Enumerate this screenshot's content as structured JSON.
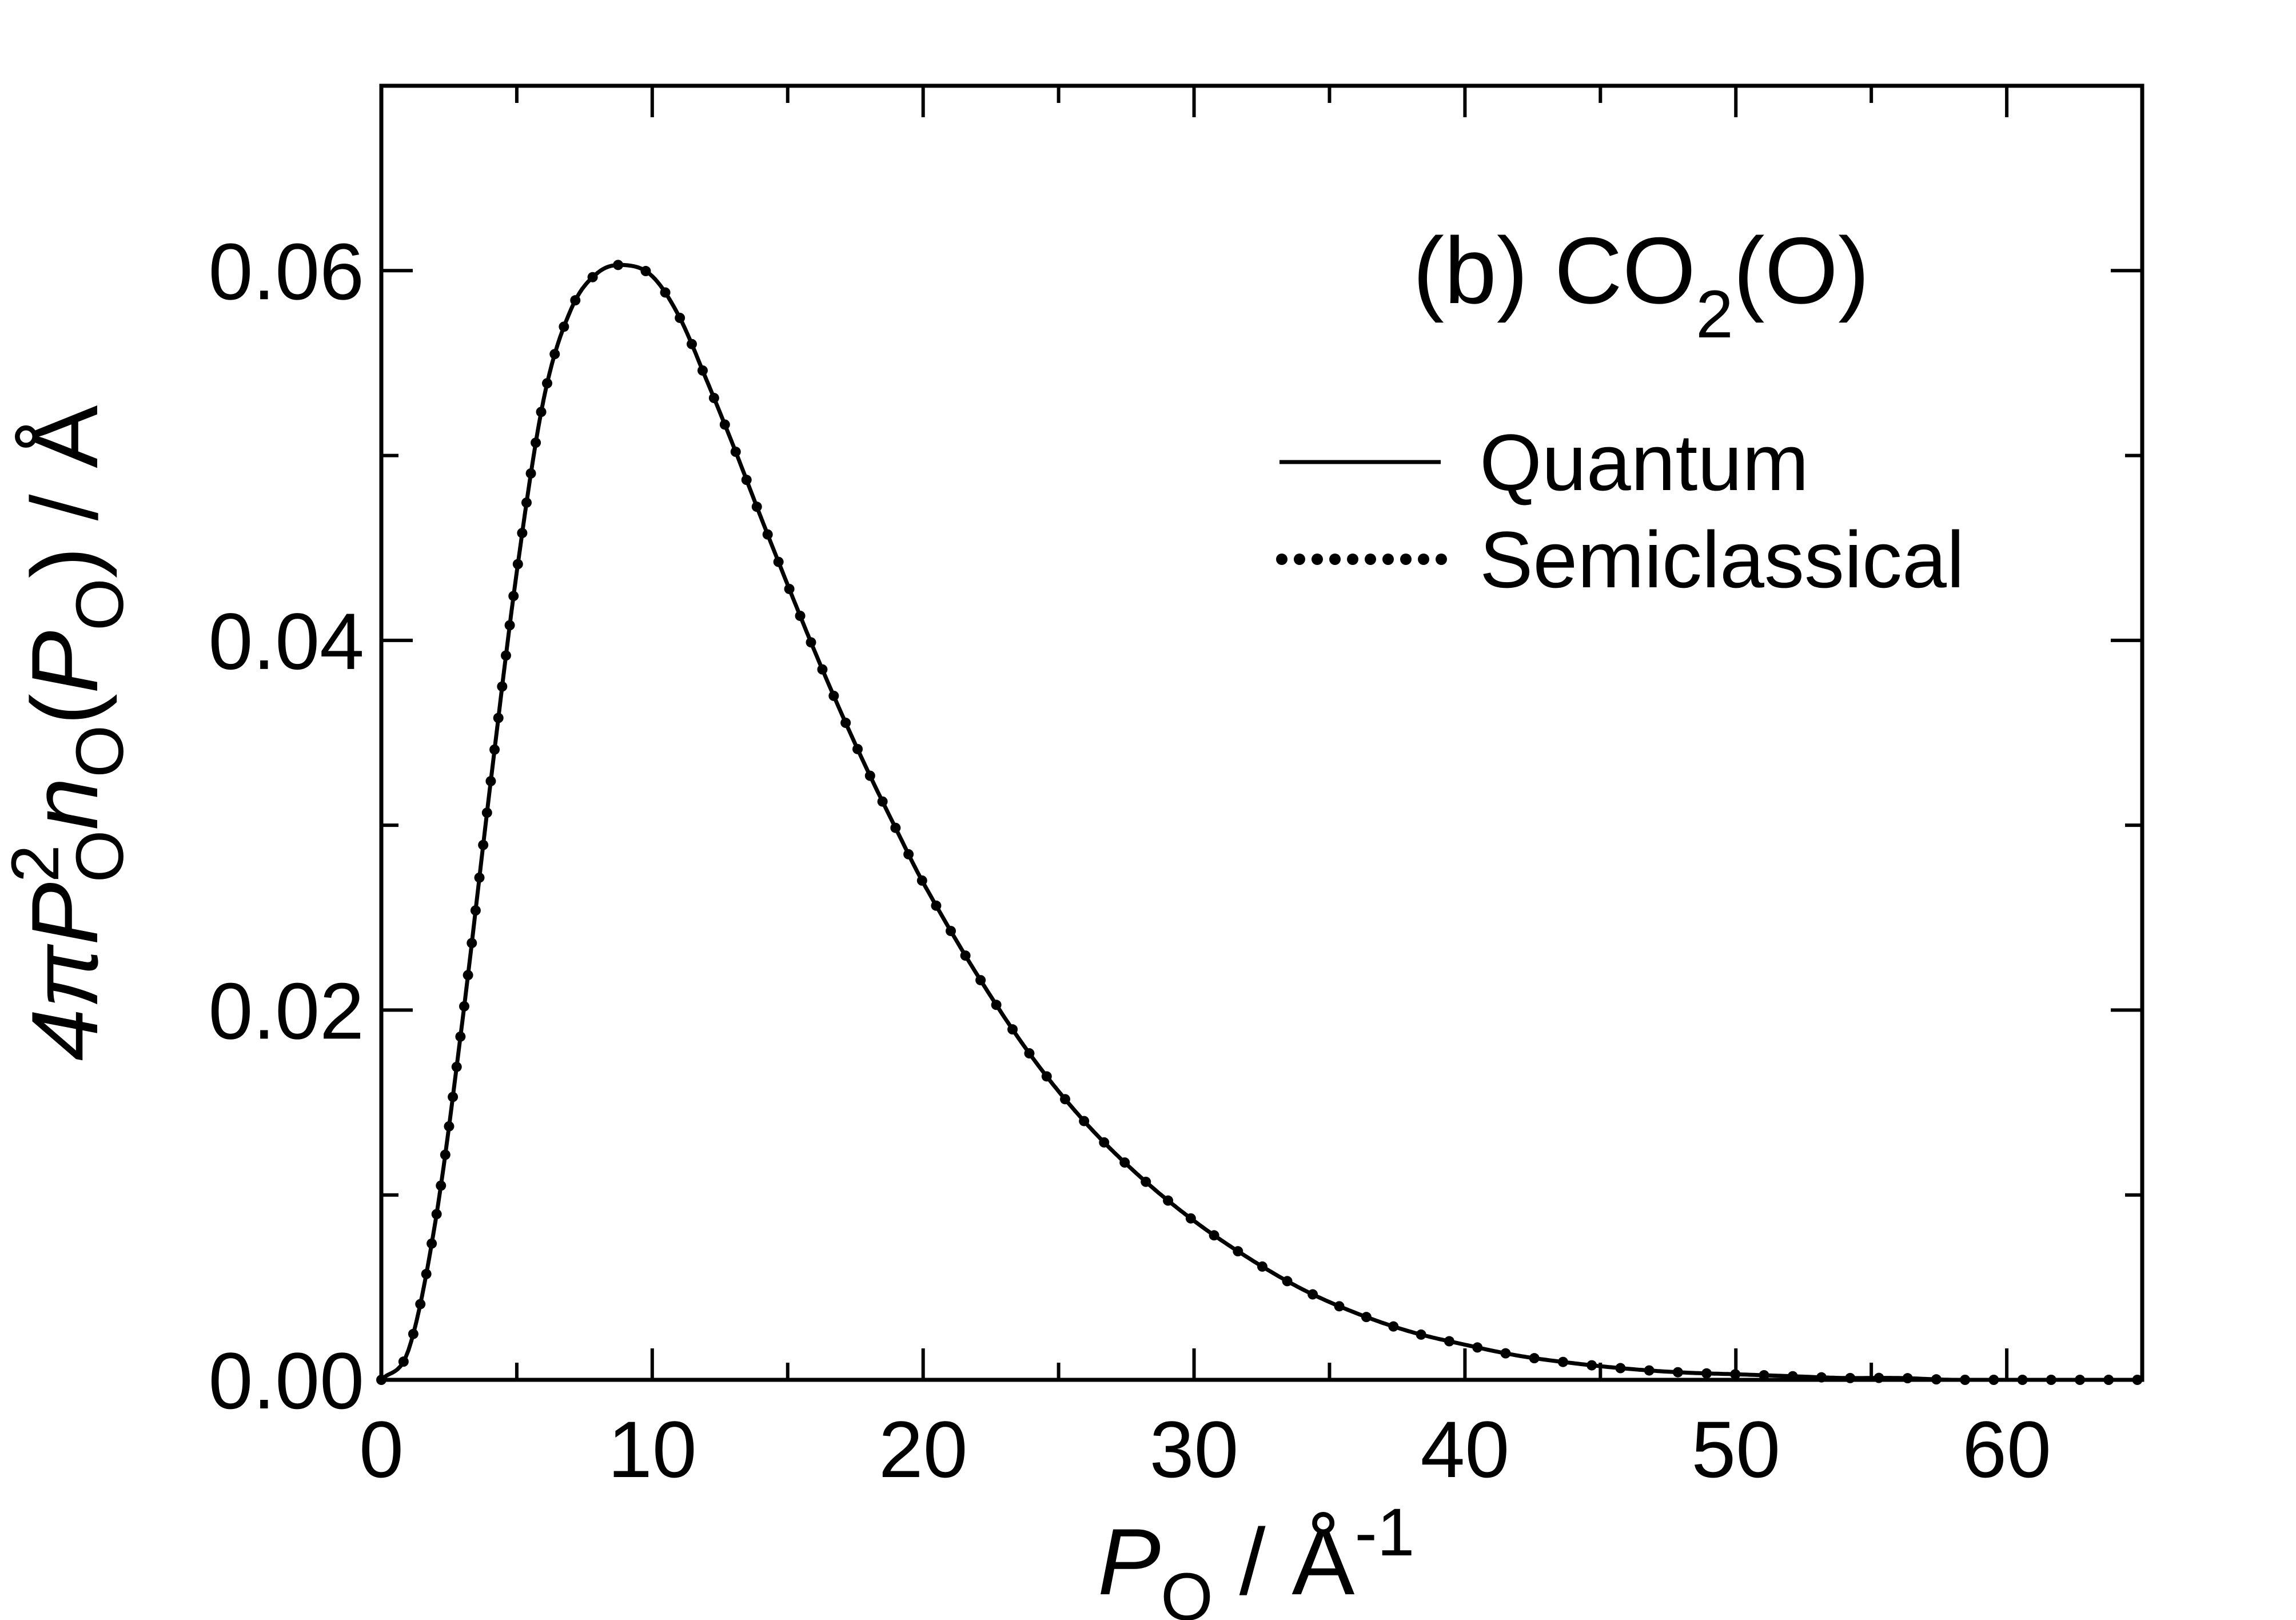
{
  "chart_data": {
    "type": "line",
    "panel_label": "(b) CO",
    "panel_label_sub": "2",
    "panel_label_tail": "(O)",
    "xlabel_main": "P",
    "xlabel_sub": "O",
    "xlabel_unit": " / Å",
    "xlabel_sup": "-1",
    "ylabel_prefix": "4π",
    "ylabel_p": "P",
    "ylabel_p_sup": "2",
    "ylabel_p_sub": "O",
    "ylabel_n": "n",
    "ylabel_n_sub": "O",
    "ylabel_open": "(",
    "ylabel_arg": "P",
    "ylabel_arg_sub": "O",
    "ylabel_close": ") / Å",
    "xlim": [
      0,
      65
    ],
    "ylim": [
      0,
      0.07
    ],
    "x_ticks": [
      0,
      10,
      20,
      30,
      40,
      50,
      60
    ],
    "x_tick_labels": [
      "0",
      "10",
      "20",
      "30",
      "40",
      "50",
      "60"
    ],
    "x_minor_step": 5,
    "y_ticks": [
      0,
      0.02,
      0.04,
      0.06
    ],
    "y_tick_labels": [
      "0.00",
      "0.02",
      "0.04",
      "0.06"
    ],
    "y_minor_step": 0.01,
    "grid": false,
    "legend_position": "top-right",
    "series": [
      {
        "name": "Quantum",
        "style": "solid",
        "color": "#000000",
        "x": [
          0,
          1,
          2,
          3,
          4,
          5,
          6,
          7,
          8,
          9,
          10,
          11,
          12,
          13,
          14,
          15,
          16,
          17,
          18,
          19,
          20,
          22,
          24,
          26,
          28,
          30,
          32,
          34,
          36,
          38,
          40,
          42,
          44,
          46,
          48,
          50,
          52,
          54,
          56,
          58,
          60,
          62,
          65
        ],
        "y": [
          0.0,
          0.0016,
          0.0086,
          0.0195,
          0.0319,
          0.0437,
          0.0531,
          0.0579,
          0.0599,
          0.0603,
          0.0597,
          0.0575,
          0.0541,
          0.0505,
          0.0467,
          0.043,
          0.0394,
          0.036,
          0.0328,
          0.0298,
          0.0269,
          0.0219,
          0.0175,
          0.0139,
          0.011,
          0.0086,
          0.0066,
          0.0049,
          0.0036,
          0.0026,
          0.0019,
          0.0013,
          0.0009,
          0.0006,
          0.0004,
          0.0003,
          0.0002,
          0.0001,
          0.0001,
          0.0,
          0.0,
          0.0,
          0.0
        ]
      },
      {
        "name": "Semiclassical",
        "style": "dotted",
        "color": "#000000",
        "x": [
          0,
          1,
          2,
          3,
          4,
          5,
          6,
          7,
          8,
          9,
          10,
          11,
          12,
          13,
          14,
          15,
          16,
          17,
          18,
          19,
          20,
          22,
          24,
          26,
          28,
          30,
          32,
          34,
          36,
          38,
          40,
          42,
          44,
          46,
          48,
          50,
          52,
          54,
          56,
          58,
          60,
          62,
          65
        ],
        "y": [
          0.0,
          0.0016,
          0.0086,
          0.0195,
          0.0319,
          0.0437,
          0.0531,
          0.0579,
          0.0599,
          0.0603,
          0.0597,
          0.0575,
          0.0541,
          0.0505,
          0.0467,
          0.043,
          0.0394,
          0.036,
          0.0328,
          0.0298,
          0.0269,
          0.0219,
          0.0175,
          0.0139,
          0.011,
          0.0086,
          0.0066,
          0.0049,
          0.0036,
          0.0026,
          0.0019,
          0.0013,
          0.0009,
          0.0006,
          0.0004,
          0.0003,
          0.0002,
          0.0001,
          0.0001,
          0.0,
          0.0,
          0.0,
          0.0
        ]
      }
    ]
  }
}
